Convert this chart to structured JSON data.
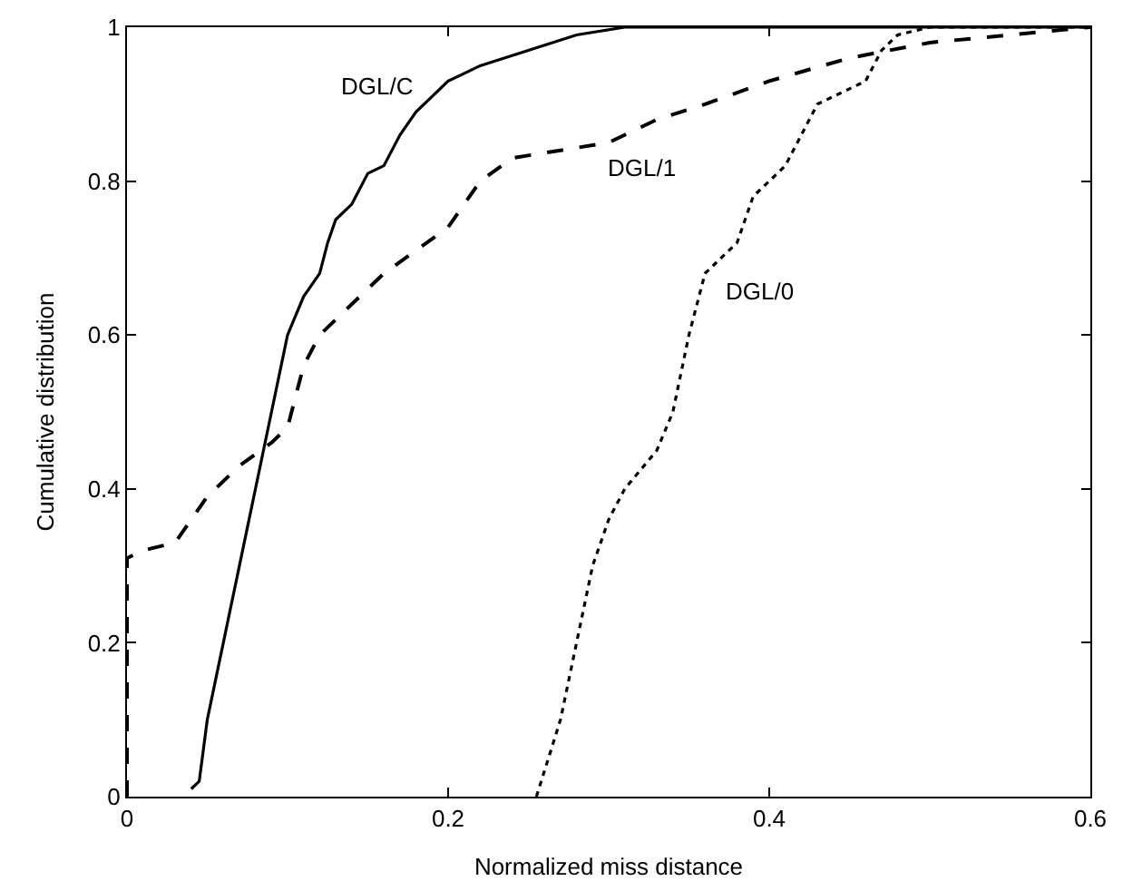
{
  "chart_data": {
    "type": "line",
    "xlabel": "Normalized miss distance",
    "ylabel": "Cumulative distribution",
    "xlim": [
      0,
      0.6
    ],
    "ylim": [
      0,
      1
    ],
    "xticks": [
      0,
      0.2,
      0.4,
      0.6
    ],
    "yticks": [
      0,
      0.2,
      0.4,
      0.6,
      0.8,
      1
    ],
    "legend": false,
    "marker": "none",
    "series": [
      {
        "name": "DGL/C",
        "color": "#000000",
        "line_style": "solid",
        "x": [
          0.04,
          0.045,
          0.05,
          0.06,
          0.07,
          0.08,
          0.088,
          0.095,
          0.1,
          0.11,
          0.12,
          0.125,
          0.13,
          0.14,
          0.15,
          0.16,
          0.17,
          0.18,
          0.19,
          0.2,
          0.22,
          0.25,
          0.28,
          0.31,
          0.6
        ],
        "values": [
          0.01,
          0.02,
          0.1,
          0.2,
          0.3,
          0.4,
          0.48,
          0.55,
          0.6,
          0.65,
          0.68,
          0.72,
          0.75,
          0.77,
          0.81,
          0.82,
          0.86,
          0.89,
          0.91,
          0.93,
          0.95,
          0.97,
          0.99,
          1.0,
          1.0
        ]
      },
      {
        "name": "DGL/1",
        "color": "#000000",
        "line_style": "dashed",
        "x": [
          0,
          0,
          0.01,
          0.03,
          0.04,
          0.05,
          0.07,
          0.09,
          0.1,
          0.105,
          0.11,
          0.12,
          0.14,
          0.16,
          0.18,
          0.2,
          0.21,
          0.22,
          0.24,
          0.27,
          0.3,
          0.33,
          0.36,
          0.4,
          0.45,
          0.5,
          0.55,
          0.6
        ],
        "values": [
          0,
          0.31,
          0.32,
          0.33,
          0.36,
          0.39,
          0.43,
          0.46,
          0.48,
          0.52,
          0.56,
          0.6,
          0.64,
          0.68,
          0.71,
          0.74,
          0.77,
          0.8,
          0.83,
          0.84,
          0.85,
          0.88,
          0.9,
          0.93,
          0.96,
          0.98,
          0.99,
          1.0
        ]
      },
      {
        "name": "DGL/0",
        "color": "#000000",
        "line_style": "dotted",
        "x": [
          0.255,
          0.27,
          0.28,
          0.29,
          0.3,
          0.31,
          0.33,
          0.34,
          0.35,
          0.36,
          0.37,
          0.38,
          0.39,
          0.4,
          0.41,
          0.42,
          0.43,
          0.45,
          0.46,
          0.47,
          0.48,
          0.5,
          0.6
        ],
        "values": [
          0,
          0.1,
          0.2,
          0.3,
          0.36,
          0.4,
          0.45,
          0.5,
          0.6,
          0.68,
          0.7,
          0.72,
          0.78,
          0.8,
          0.82,
          0.86,
          0.9,
          0.92,
          0.93,
          0.97,
          0.99,
          1.0,
          1.0
        ]
      }
    ]
  }
}
